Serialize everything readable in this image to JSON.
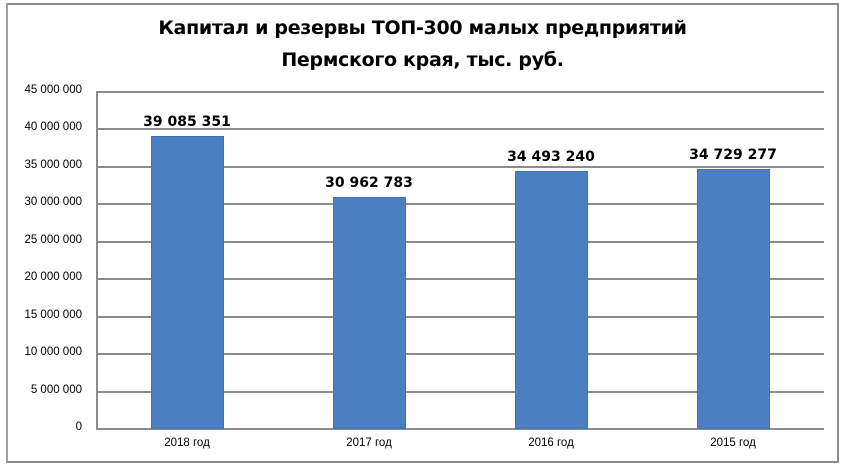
{
  "chart_data": {
    "type": "bar",
    "title": "Капитал и резервы ТОП-300 малых предприятий Пермского края, тыс. руб.",
    "title_lines": [
      "Капитал и резервы ТОП-300 малых предприятий",
      "Пермского края, тыс. руб."
    ],
    "categories": [
      "2018 год",
      "2017 год",
      "2016 год",
      "2015 год"
    ],
    "values": [
      39085351,
      30962783,
      34493240,
      34729277
    ],
    "data_labels": [
      "39 085 351",
      "30 962 783",
      "34 493 240",
      "34 729 277"
    ],
    "xlabel": "",
    "ylabel": "",
    "ylim": [
      0,
      45000000
    ],
    "yticks": [
      0,
      5000000,
      10000000,
      15000000,
      20000000,
      25000000,
      30000000,
      35000000,
      40000000,
      45000000
    ],
    "ytick_labels": [
      "0",
      "5 000 000",
      "10 000 000",
      "15 000 000",
      "20 000 000",
      "25 000 000",
      "30 000 000",
      "35 000 000",
      "40 000 000",
      "45 000 000"
    ],
    "grid": true,
    "legend": null,
    "bar_color": "#4a7fc1"
  }
}
